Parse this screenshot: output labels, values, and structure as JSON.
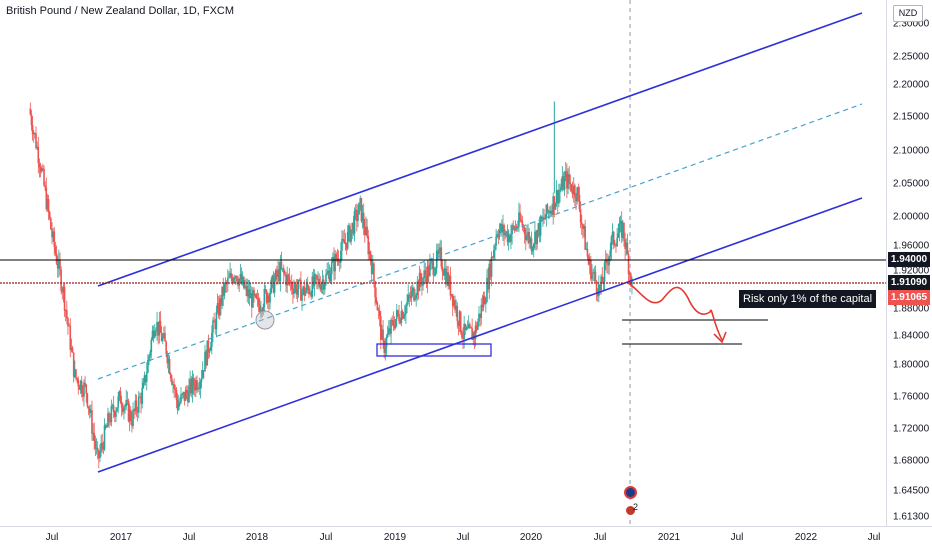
{
  "header": {
    "symbol_title": "British Pound / New Zealand Dollar, 1D, FXCM",
    "currency": "NZD"
  },
  "price_scale": {
    "ticks": [
      "2.30000",
      "2.25000",
      "2.20000",
      "2.15000",
      "2.10000",
      "2.05000",
      "2.00000",
      "1.96000",
      "1.92000",
      "1.88000",
      "1.84000",
      "1.80000",
      "1.76000",
      "1.72000",
      "1.68000",
      "1.64500",
      "1.61300"
    ],
    "labels": {
      "level": "1.94000",
      "support": "1.91090",
      "current": "1.91065"
    }
  },
  "time_scale": {
    "ticks": [
      "Jul",
      "2017",
      "Jul",
      "2018",
      "Jul",
      "2019",
      "Jul",
      "2020",
      "Jul",
      "2021",
      "Jul",
      "2022",
      "Jul"
    ]
  },
  "annotations": {
    "risk_note": "Risk only 1% of the capital",
    "event_count": "2"
  },
  "colors": {
    "up_candle": "#26a69a",
    "down_candle": "#ef5350",
    "channel": "#2f2fdc",
    "midline": "#45a3cf",
    "level_line": "#000000",
    "support_line": "#9c1c1c",
    "projection": "#e53935",
    "current_price": "#ef5350"
  },
  "chart_data": {
    "type": "candlestick",
    "symbol": "GBPNZD",
    "interval": "1D",
    "x": [
      "Jul",
      "2017",
      "Jul",
      "2018",
      "Jul",
      "2019",
      "Jul",
      "2020",
      "Jul",
      "2021",
      "Jul",
      "2022",
      "Jul"
    ],
    "ylim": [
      1.613,
      2.3
    ],
    "close_path": [
      {
        "x": "2016-05",
        "y": 2.18
      },
      {
        "x": "2016-06",
        "y": 2.1
      },
      {
        "x": "2016-07",
        "y": 2.0
      },
      {
        "x": "2016-08",
        "y": 1.92
      },
      {
        "x": "2016-09",
        "y": 1.8
      },
      {
        "x": "2016-10",
        "y": 1.78
      },
      {
        "x": "2016-11",
        "y": 1.68
      },
      {
        "x": "2016-12",
        "y": 1.74
      },
      {
        "x": "2017-01",
        "y": 1.77
      },
      {
        "x": "2017-02",
        "y": 1.74
      },
      {
        "x": "2017-03",
        "y": 1.78
      },
      {
        "x": "2017-04",
        "y": 1.88
      },
      {
        "x": "2017-05",
        "y": 1.84
      },
      {
        "x": "2017-06",
        "y": 1.76
      },
      {
        "x": "2017-07",
        "y": 1.78
      },
      {
        "x": "2017-08",
        "y": 1.8
      },
      {
        "x": "2017-09",
        "y": 1.86
      },
      {
        "x": "2017-10",
        "y": 1.92
      },
      {
        "x": "2017-11",
        "y": 1.95
      },
      {
        "x": "2017-12",
        "y": 1.92
      },
      {
        "x": "2018-01",
        "y": 1.9
      },
      {
        "x": "2018-02",
        "y": 1.92
      },
      {
        "x": "2018-03",
        "y": 1.95
      },
      {
        "x": "2018-04",
        "y": 1.93
      },
      {
        "x": "2018-05",
        "y": 1.92
      },
      {
        "x": "2018-06",
        "y": 1.93
      },
      {
        "x": "2018-07",
        "y": 1.94
      },
      {
        "x": "2018-08",
        "y": 1.97
      },
      {
        "x": "2018-09",
        "y": 2.0
      },
      {
        "x": "2018-10",
        "y": 2.04
      },
      {
        "x": "2018-11",
        "y": 1.96
      },
      {
        "x": "2018-12",
        "y": 1.84
      },
      {
        "x": "2019-01",
        "y": 1.88
      },
      {
        "x": "2019-02",
        "y": 1.9
      },
      {
        "x": "2019-03",
        "y": 1.93
      },
      {
        "x": "2019-04",
        "y": 1.95
      },
      {
        "x": "2019-05",
        "y": 1.97
      },
      {
        "x": "2019-06",
        "y": 1.92
      },
      {
        "x": "2019-07",
        "y": 1.86
      },
      {
        "x": "2019-08",
        "y": 1.86
      },
      {
        "x": "2019-09",
        "y": 1.92
      },
      {
        "x": "2019-10",
        "y": 2.01
      },
      {
        "x": "2019-11",
        "y": 2.0
      },
      {
        "x": "2019-12",
        "y": 2.02
      },
      {
        "x": "2020-01",
        "y": 1.99
      },
      {
        "x": "2020-02",
        "y": 2.02
      },
      {
        "x": "2020-03",
        "y": 2.05
      },
      {
        "x": "2020-04",
        "y": 2.08
      },
      {
        "x": "2020-05",
        "y": 2.06
      },
      {
        "x": "2020-06",
        "y": 1.96
      },
      {
        "x": "2020-07",
        "y": 1.92
      },
      {
        "x": "2020-08",
        "y": 1.99
      },
      {
        "x": "2020-09",
        "y": 2.01
      },
      {
        "x": "2020-10",
        "y": 1.91
      }
    ],
    "horizontal_levels": [
      1.94,
      1.9109
    ],
    "current_price": 1.91065
  }
}
